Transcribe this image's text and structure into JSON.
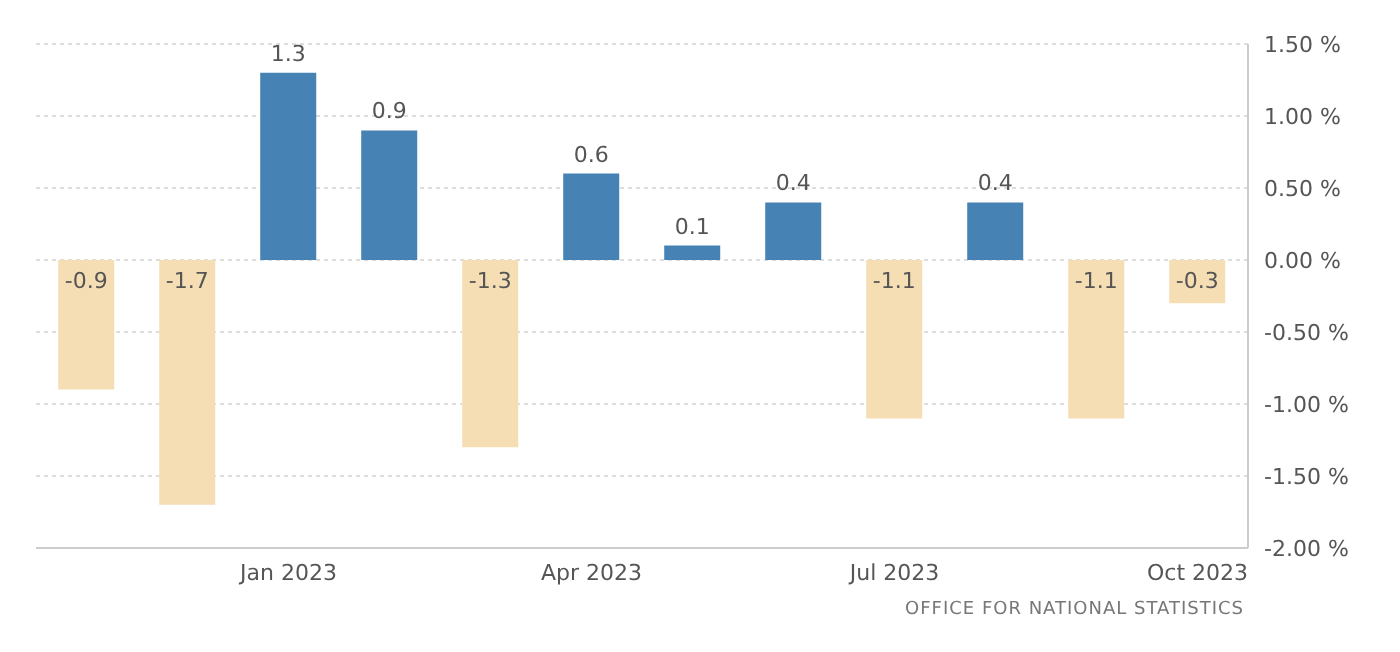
{
  "chart_data": {
    "type": "bar",
    "categories": [
      null,
      null,
      "Jan 2023",
      null,
      null,
      "Apr 2023",
      null,
      null,
      "Jul 2023",
      null,
      null,
      "Oct 2023"
    ],
    "values": [
      -0.9,
      -1.7,
      1.3,
      0.9,
      -1.3,
      0.6,
      0.1,
      0.4,
      -1.1,
      0.4,
      -1.1,
      -0.3
    ],
    "colors": [
      "#f5deb3",
      "#f5deb3",
      "#4682b4",
      "#4682b4",
      "#f5deb3",
      "#4682b4",
      "#4682b4",
      "#4682b4",
      "#f5deb3",
      "#4682b4",
      "#f5deb3",
      "#f5deb3"
    ],
    "ylim": [
      -2,
      1.5
    ],
    "yticks": [
      {
        "value": -2,
        "label": "-2.00 %"
      },
      {
        "value": -1.5,
        "label": "-1.50 %"
      },
      {
        "value": -1,
        "label": "-1.00 %"
      },
      {
        "value": -0.5,
        "label": "-0.50 %"
      },
      {
        "value": 0,
        "label": "0.00 %"
      },
      {
        "value": 0.5,
        "label": "0.50 %"
      },
      {
        "value": 1,
        "label": "1.00 %"
      },
      {
        "value": 1.5,
        "label": "1.50 %"
      }
    ],
    "grid": "y",
    "data_labels": true,
    "annotations": [
      "OFFICE FOR NATIONAL STATISTICS"
    ]
  }
}
